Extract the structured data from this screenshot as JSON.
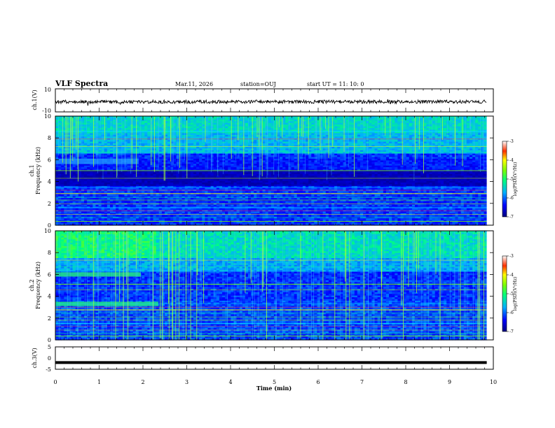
{
  "header": {
    "title": "VLF Spectra",
    "date": "Mar.11, 2026",
    "station": "station=OUJ",
    "start": "start UT =  11: 10: 0"
  },
  "chart_data": [
    {
      "type": "line",
      "name": "ch1-waveform",
      "ylabel": "ch.1(V)",
      "ylim": [
        -10,
        10
      ],
      "yticks": [
        "10",
        "-10"
      ],
      "x": [
        0,
        10
      ],
      "xlabel": "",
      "note": "noisy waveform around approximately 0 V with amplitude about 1 V"
    },
    {
      "type": "heatmap",
      "name": "ch1-spectrogram",
      "channel_label": "ch.1",
      "ylabel": "Frequency (kHz)",
      "ylim": [
        0,
        10
      ],
      "yticks": [
        "0",
        "2",
        "4",
        "6",
        "8",
        "10"
      ],
      "xlim": [
        0,
        10
      ],
      "data_end_min": 9.85,
      "colorbar": {
        "label": "log(PSD)(V²/Hz)",
        "range": [
          -7,
          -3
        ],
        "ticks": [
          "-3",
          "-4",
          "-5",
          "-6",
          "-7"
        ]
      },
      "features": [
        {
          "kind": "band",
          "f_lo": 5.6,
          "f_hi": 6.1,
          "t_start": 0,
          "t_end": 1.9
        },
        {
          "kind": "quiet_band",
          "f_lo": 3.6,
          "f_hi": 5.0
        },
        {
          "kind": "quiet_band",
          "f_lo": 6.2,
          "f_hi": 6.7
        },
        {
          "kind": "emission",
          "f_lo": 6.5,
          "f_hi": 10.0
        }
      ]
    },
    {
      "type": "heatmap",
      "name": "ch2-spectrogram",
      "channel_label": "ch.2",
      "ylabel": "Frequency (kHz)",
      "ylim": [
        0,
        10
      ],
      "yticks": [
        "0",
        "2",
        "4",
        "6",
        "8",
        "10"
      ],
      "xlim": [
        0,
        10
      ],
      "data_end_min": 9.85,
      "colorbar": {
        "label": "log(PSD)(V²/Hz)",
        "range": [
          -7,
          -3
        ],
        "ticks": [
          "-3",
          "-4",
          "-5",
          "-6",
          "-7"
        ]
      },
      "features": [
        {
          "kind": "band",
          "f_lo": 5.8,
          "f_hi": 6.2,
          "t_start": 0,
          "t_end": 1.95
        },
        {
          "kind": "band",
          "f_lo": 3.1,
          "f_hi": 3.5,
          "t_start": 0,
          "t_end": 2.35
        },
        {
          "kind": "emission",
          "f_lo": 7.5,
          "f_hi": 10.0
        }
      ]
    },
    {
      "type": "line",
      "name": "ch3-waveform",
      "ylabel": "ch.3(V)",
      "ylim": [
        -5,
        5
      ],
      "yticks": [
        "5",
        "0",
        "-5"
      ],
      "y_value": -2.0,
      "xlim": [
        0,
        10
      ],
      "xticks": [
        "0",
        "1",
        "2",
        "3",
        "4",
        "5",
        "6",
        "7",
        "8",
        "9",
        "10"
      ],
      "xlabel": "Time (min)"
    }
  ]
}
